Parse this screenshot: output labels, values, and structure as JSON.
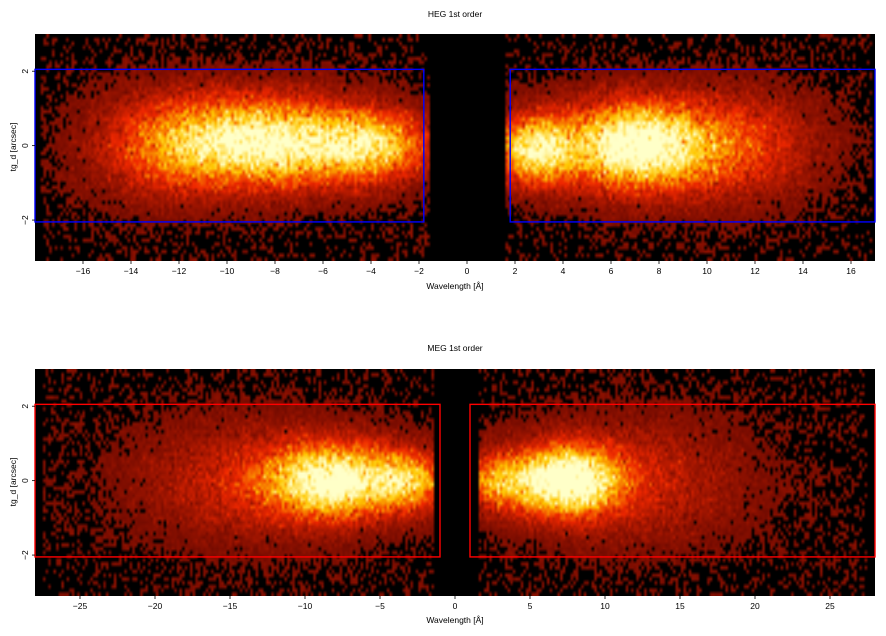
{
  "chart_data": [
    {
      "type": "heatmap",
      "title": "HEG 1st order",
      "xlabel": "Wavelength [Å]",
      "ylabel": "tg_d [arcsec]",
      "xlim": [
        -18,
        17
      ],
      "ylim": [
        -3.1,
        3.0
      ],
      "x_ticks": [
        "−16",
        "−14",
        "−12",
        "−10",
        "−8",
        "−6",
        "−4",
        "−2",
        "0",
        "2",
        "4",
        "6",
        "8",
        "10",
        "12",
        "14",
        "16"
      ],
      "x_tick_values": [
        -16,
        -14,
        -12,
        -10,
        -8,
        -6,
        -4,
        -2,
        0,
        2,
        4,
        6,
        8,
        10,
        12,
        14,
        16
      ],
      "y_ticks": [
        "−2",
        "0",
        "2"
      ],
      "y_tick_values": [
        -2,
        0,
        2
      ],
      "colormap": "black-red-yellow-white (heat)",
      "background": "#000000",
      "region_color": "#0000ff",
      "regions": [
        {
          "x": [
            -18,
            -1.8
          ],
          "y": [
            -2.05,
            2.05
          ]
        },
        {
          "x": [
            1.8,
            17
          ],
          "y": [
            -2.05,
            2.05
          ]
        }
      ],
      "intensity_peaks": [
        {
          "center_x": -8.5,
          "center_y": 0.1,
          "brightness": "high"
        },
        {
          "center_x": -4.5,
          "center_y": 0.0,
          "brightness": "high"
        },
        {
          "center_x": 2.8,
          "center_y": -0.1,
          "brightness": "high"
        },
        {
          "center_x": 7.0,
          "center_y": 0.0,
          "brightness": "highest"
        }
      ]
    },
    {
      "type": "heatmap",
      "title": "MEG 1st order",
      "xlabel": "Wavelength [Å]",
      "ylabel": "tg_d [arcsec]",
      "xlim": [
        -28,
        28
      ],
      "ylim": [
        -3.1,
        3.0
      ],
      "x_ticks": [
        "−25",
        "−20",
        "−15",
        "−10",
        "−5",
        "0",
        "5",
        "10",
        "15",
        "20",
        "25"
      ],
      "x_tick_values": [
        -25,
        -20,
        -15,
        -10,
        -5,
        0,
        5,
        10,
        15,
        20,
        25
      ],
      "y_ticks": [
        "−2",
        "0",
        "2"
      ],
      "y_tick_values": [
        -2,
        0,
        2
      ],
      "colormap": "black-red-yellow-white (heat)",
      "background": "#000000",
      "region_color": "#ff0000",
      "regions": [
        {
          "x": [
            -28,
            -1.0
          ],
          "y": [
            -2.05,
            2.05
          ]
        },
        {
          "x": [
            1.0,
            28
          ],
          "y": [
            -2.05,
            2.05
          ]
        }
      ],
      "intensity_peaks": [
        {
          "center_x": -8.0,
          "center_y": 0.0,
          "brightness": "high"
        },
        {
          "center_x": -3.0,
          "center_y": 0.0,
          "brightness": "medium"
        },
        {
          "center_x": 3.0,
          "center_y": 0.0,
          "brightness": "medium"
        },
        {
          "center_x": 7.5,
          "center_y": 0.0,
          "brightness": "highest"
        }
      ]
    }
  ]
}
